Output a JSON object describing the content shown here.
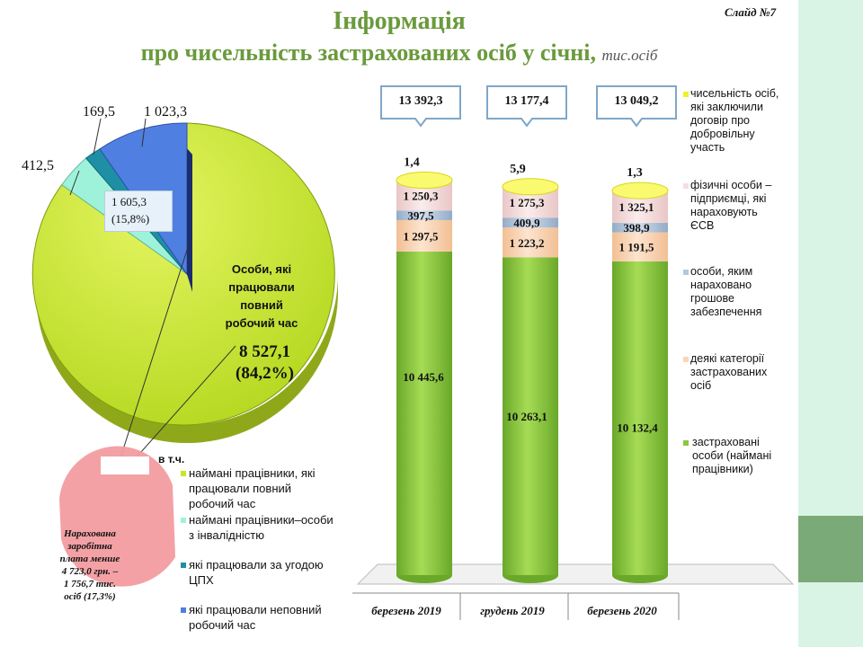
{
  "slide_label": "Слайд №7",
  "title_line1": "Інформація",
  "title_line2": "про чисельність застрахованих осіб у січні,",
  "title_unit": "тис.осіб",
  "colors": {
    "green": "#8cc63f",
    "peach": "#fbd5b5",
    "blue_grey": "#b4c7dc",
    "pink": "#f4dede",
    "yellow": "#f0f02a",
    "lime": "#c6e62b",
    "aqua": "#9ff2da",
    "teal": "#1f8fa6",
    "royal": "#4f7fe0",
    "red_pink": "#f29ca0",
    "accent_band": "#d9f4e5",
    "accent_block": "#7aaa78"
  },
  "chart_data": [
    {
      "type": "pie",
      "slices": [
        {
          "name": "Особи, які працювали повний робочий час",
          "value": 8527.1,
          "label": "8 527,1",
          "pct_label": "(84,2%)"
        },
        {
          "name": "",
          "value": 412.5,
          "label": "412,5"
        },
        {
          "name": "",
          "value": 169.5,
          "label": "169,5"
        },
        {
          "name": "",
          "value": 1023.3,
          "label": "1 023,3"
        }
      ],
      "big_label_lines": [
        "Особи, які",
        "працювали",
        "повний",
        "робочий час"
      ],
      "other_label": "1 605,3",
      "other_pct": "(15,8%)",
      "in_tch": "в т.ч.",
      "sub_pie_note_lines": [
        "Нарахована",
        "заробітна",
        "плата менше",
        "4 723,0 грн. –",
        "1 756,7 тис.",
        "осіб (17,3%)"
      ],
      "legend": [
        {
          "lines": [
            "наймані працівники, які",
            "працювали повний",
            "робочий час"
          ]
        },
        {
          "lines": [
            "наймані працівники–особи",
            "з інвалідністю"
          ]
        },
        {
          "lines": [
            "які працювали за угодою",
            "ЦПХ"
          ]
        },
        {
          "lines": [
            "які працювали неповний",
            "робочий час"
          ]
        }
      ]
    },
    {
      "type": "bar",
      "stacked": true,
      "categories": [
        "березень 2019",
        "грудень 2019",
        "березень 2020"
      ],
      "totals": [
        "13 392,3",
        "13 177,4",
        "13 049,2"
      ],
      "series": [
        {
          "name": "застраховані особи (наймані працівники)",
          "values": [
            10445.6,
            10263.1,
            10132.4
          ],
          "labels": [
            "10 445,6",
            "10 263,1",
            "10 132,4"
          ]
        },
        {
          "name": "деякі категорії застрахованих осіб",
          "values": [
            1297.5,
            1223.2,
            1191.5
          ],
          "labels": [
            "1 297,5",
            "1 223,2",
            "1 191,5"
          ]
        },
        {
          "name": "особи, яким нараховано грошове забезпечення",
          "values": [
            397.5,
            409.9,
            398.9
          ],
          "labels": [
            "397,5",
            "409,9",
            "398,9"
          ]
        },
        {
          "name": "фізичні особи – підприємці, які нараховують ЄСВ",
          "values": [
            1250.3,
            1275.3,
            1325.1
          ],
          "labels": [
            "1 250,3",
            "1 275,3",
            "1 325,1"
          ]
        },
        {
          "name": "чисельність осіб, які заключили договір про добровільну участь",
          "values": [
            1.4,
            5.9,
            1.3
          ],
          "labels": [
            "1,4",
            "5,9",
            "1,3"
          ]
        }
      ],
      "legend_lines": [
        [
          "чисельність осіб,",
          "які заключили",
          "договір про",
          "добровільну",
          "участь"
        ],
        [
          "фізичні особи –",
          "підприємці,  які",
          "нараховують",
          "ЄСВ"
        ],
        [
          "особи, яким",
          "нараховано",
          "грошове",
          "забезпечення"
        ],
        [
          "деякі категорії",
          "застрахованих",
          "осіб"
        ],
        [
          "застраховані",
          "особи (наймані",
          "працівники)"
        ]
      ]
    }
  ]
}
